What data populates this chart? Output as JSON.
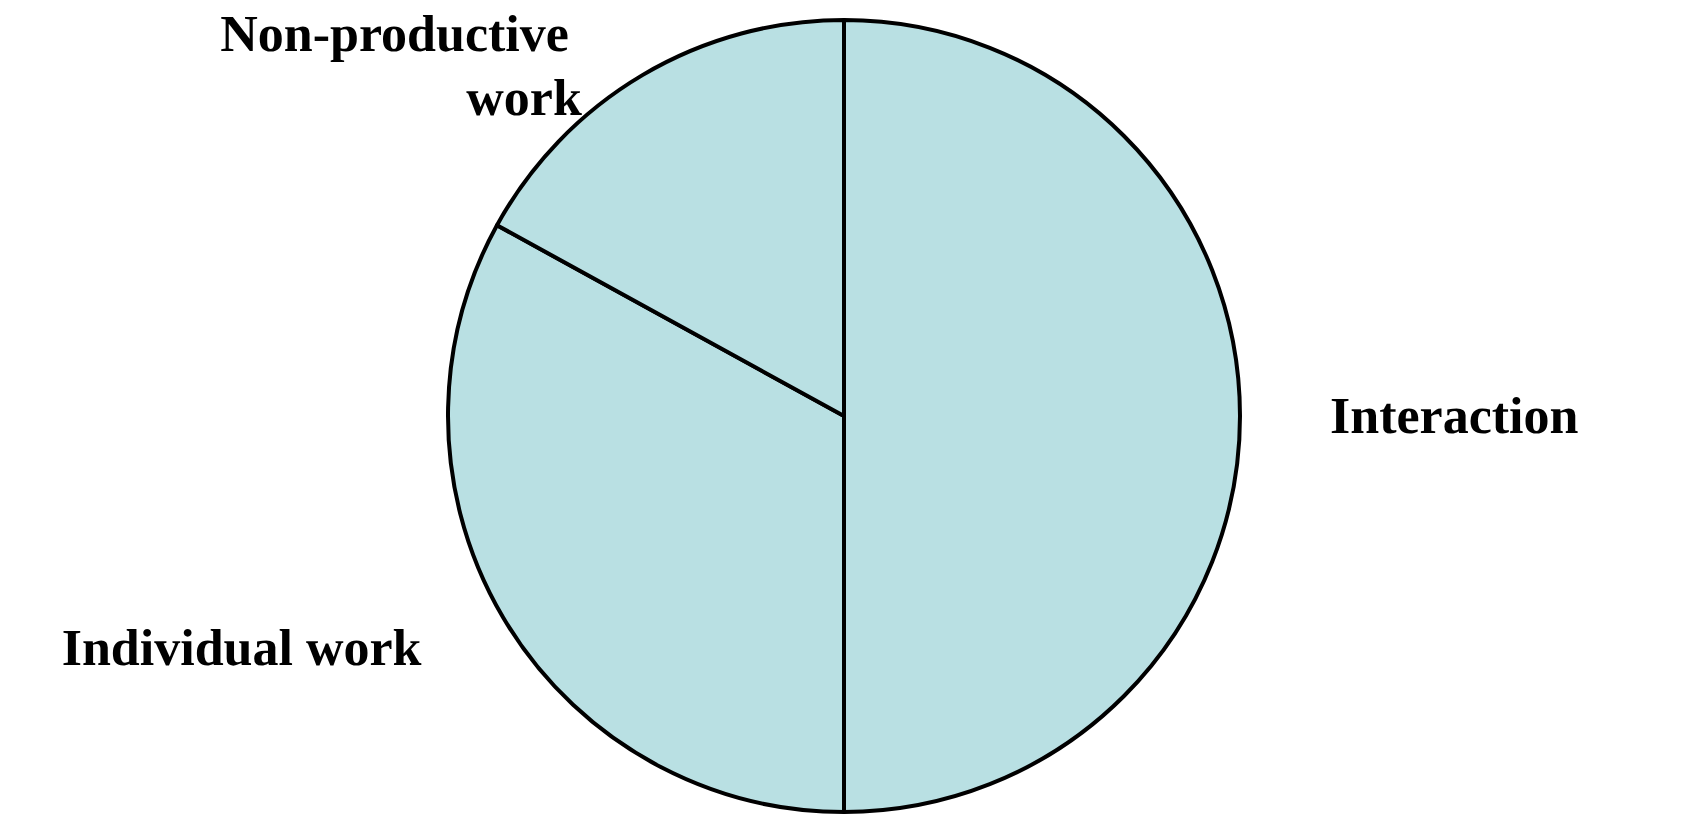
{
  "chart_data": {
    "type": "pie",
    "categories": [
      "Interaction",
      "Individual work",
      "Non-productive work"
    ],
    "values": [
      50,
      33,
      17
    ],
    "colors": [
      "#b9e0e3",
      "#b9e0e3",
      "#b9e0e3"
    ],
    "legend": false
  }
}
